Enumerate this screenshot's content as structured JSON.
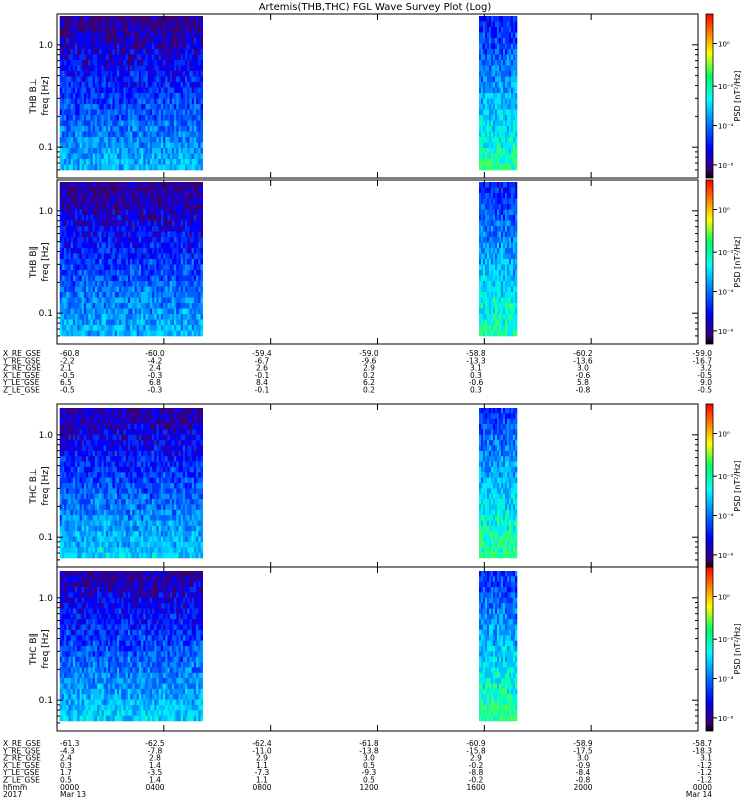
{
  "title": "Artemis(THB,THC) FGL Wave Survey Plot (Log)",
  "colorbar_label": "PSD [nT²/Hz]",
  "colorbar_ticks": [
    "10⁰",
    "10⁻²",
    "10⁻⁴",
    "10⁻⁶"
  ],
  "panels": [
    {
      "probe": "THB",
      "ylabel": "THB B⊥",
      "freq_label": "freq [Hz]",
      "yticks": [
        "1.0",
        "0.1"
      ]
    },
    {
      "probe": "THB",
      "ylabel": "THB B‖",
      "freq_label": "freq [Hz]",
      "yticks": [
        "1.0",
        "0.1"
      ]
    },
    {
      "probe": "THC",
      "ylabel": "THC B⊥",
      "freq_label": "freq [Hz]",
      "yticks": [
        "1.0",
        "0.1"
      ]
    },
    {
      "probe": "THC",
      "ylabel": "THC B‖",
      "freq_label": "freq [Hz]",
      "yticks": [
        "1.0",
        "0.1"
      ]
    }
  ],
  "ephemeris_thb": {
    "rows": [
      {
        "label": "X_RE_GSE",
        "values": [
          "-60.8",
          "-60.0",
          "-59.4",
          "-59.0",
          "-58.8",
          "-60.2",
          "-59.0"
        ]
      },
      {
        "label": "Y_RE_GSE",
        "values": [
          "-2.2",
          "-4.2",
          "-6.7",
          "-9.6",
          "-13.3",
          "-13.6",
          "-16.7"
        ]
      },
      {
        "label": "Z_RE_GSE",
        "values": [
          "2.1",
          "2.4",
          "2.6",
          "2.9",
          "3.1",
          "3.0",
          "3.2"
        ]
      },
      {
        "label": "X_LE_GSE",
        "values": [
          "-0.5",
          "-0.3",
          "-0.1",
          "0.2",
          "0.3",
          "-0.6",
          "-0.5"
        ]
      },
      {
        "label": "Y_LE_GSE",
        "values": [
          "6.5",
          "6.8",
          "8.4",
          "6.2",
          "-0.6",
          "5.8",
          "9.0"
        ]
      },
      {
        "label": "Z_LE_GSE",
        "values": [
          "-0.5",
          "-0.3",
          "-0.1",
          "0.2",
          "0.3",
          "-0.8",
          "-0.5"
        ]
      }
    ]
  },
  "ephemeris_thc": {
    "rows": [
      {
        "label": "X_RE_GSE",
        "values": [
          "-61.3",
          "-62.5",
          "-62.4",
          "-61.8",
          "-60.9",
          "-58.9",
          "-58.7"
        ]
      },
      {
        "label": "Y_RE_GSE",
        "values": [
          "-4.3",
          "-7.8",
          "-11.0",
          "-13.8",
          "-15.8",
          "-17.5",
          "-18.3"
        ]
      },
      {
        "label": "Z_RE_GSE",
        "values": [
          "2.4",
          "2.8",
          "2.9",
          "3.0",
          "2.9",
          "3.0",
          "3.1"
        ]
      },
      {
        "label": "X_LE_GSE",
        "values": [
          "0.3",
          "1.4",
          "1.1",
          "0.5",
          "-0.2",
          "-0.9",
          "-1.2"
        ]
      },
      {
        "label": "Y_LE_GSE",
        "values": [
          "1.7",
          "-3.5",
          "-7.3",
          "-9.3",
          "-8.8",
          "-8.4",
          "-1.2"
        ]
      },
      {
        "label": "Z_LE_GSE",
        "values": [
          "0.5",
          "1.4",
          "1.1",
          "0.5",
          "-0.2",
          "-0.8",
          "-1.2"
        ]
      }
    ],
    "time_label": "hhmm",
    "year_label": "2017",
    "times": [
      "0000",
      "0400",
      "0800",
      "1200",
      "1600",
      "2000",
      "0000"
    ],
    "dates": [
      "Mar 13",
      "Mar 14"
    ]
  },
  "chart_data": {
    "type": "heatmap",
    "title": "Artemis(THB,THC) FGL Wave Survey Plot (Log)",
    "xlabel": "hhmm",
    "x_range_hours": [
      0,
      24
    ],
    "x_ticks": [
      "0000",
      "0400",
      "0800",
      "1200",
      "1600",
      "2000",
      "0000"
    ],
    "y_scale": "log",
    "y_range_hz": [
      0.05,
      2.0
    ],
    "z_scale": "log",
    "z_range": [
      1e-07,
      10.0
    ],
    "data_intervals_hours": [
      [
        0.1,
        5.4
      ],
      [
        15.8,
        17.2
      ]
    ],
    "panels": [
      "THB B⊥",
      "THB B‖",
      "THC B⊥",
      "THC B‖"
    ]
  }
}
